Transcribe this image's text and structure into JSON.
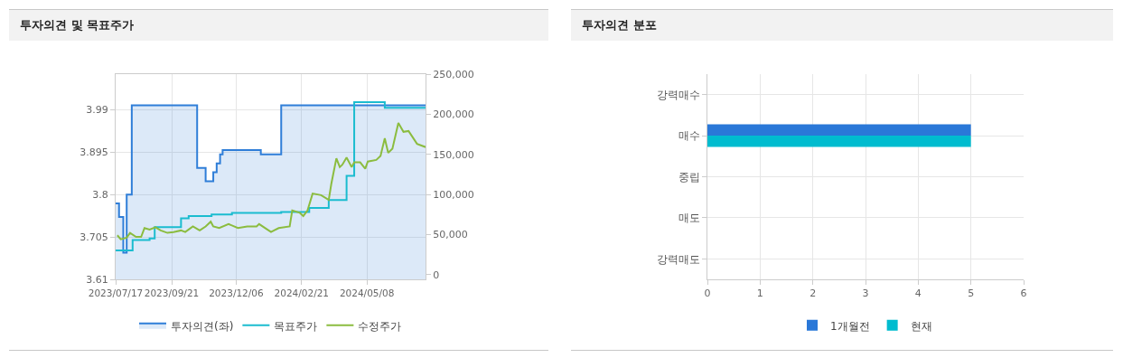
{
  "chart_data": [
    {
      "type": "line",
      "title": "투자의견 및 목표주가",
      "legend": "bottom",
      "grid": true,
      "xlim": [
        "2023-07-17",
        "2024-07-16"
      ],
      "xticks": [
        {
          "value": "2023-07-17",
          "label": "2023/07/17"
        },
        {
          "value": "2023-09-21",
          "label": "2023/09/21"
        },
        {
          "value": "2023-12-06",
          "label": "2023/12/06"
        },
        {
          "value": "2024-02-21",
          "label": "2024/02/21"
        },
        {
          "value": "2024-05-08",
          "label": "2024/05/08"
        }
      ],
      "ylim": [
        3.61,
        4.07
      ],
      "yticks": [
        3.61,
        3.705,
        3.8,
        3.895,
        3.99
      ],
      "y2lim": [
        -6000,
        250000
      ],
      "y2ticks": [
        0,
        {
          "value": 50000,
          "label": "50,000"
        },
        {
          "value": 100000,
          "label": "100,000"
        },
        {
          "value": 150000,
          "label": "150,000"
        },
        {
          "value": 200000,
          "label": "200,000"
        },
        {
          "value": 250000,
          "label": "250,000"
        }
      ],
      "series": [
        {
          "name": "투자의견(좌)",
          "type": "area",
          "color": "#2f7ed8",
          "x": [
            "2023-07-17",
            "2023-07-21",
            "2023-07-21",
            "2023-07-26",
            "2023-07-26",
            "2023-07-30",
            "2023-07-30",
            "2023-08-05",
            "2023-08-05",
            "2023-10-21",
            "2023-10-21",
            "2023-10-31",
            "2023-10-31",
            "2023-11-09",
            "2023-11-09",
            "2023-11-13",
            "2023-11-13",
            "2023-11-17",
            "2023-11-17",
            "2023-11-20",
            "2023-11-20",
            "2024-01-04",
            "2024-01-04",
            "2024-01-28",
            "2024-01-28",
            "2024-07-16"
          ],
          "values": [
            3.78,
            3.78,
            3.75,
            3.75,
            3.67,
            3.67,
            3.8,
            3.8,
            4.0,
            4.0,
            3.86,
            3.86,
            3.83,
            3.83,
            3.85,
            3.85,
            3.87,
            3.87,
            3.89,
            3.89,
            3.9,
            3.9,
            3.89,
            3.89,
            4.0,
            4.0
          ]
        },
        {
          "name": "목표주가",
          "type": "step",
          "axis": "y2",
          "color": "#1bbccf",
          "x": [
            "2023-07-17",
            "2023-08-06",
            "2023-08-26",
            "2023-09-01",
            "2023-10-02",
            "2023-10-11",
            "2023-11-07",
            "2023-12-01",
            "2024-01-28",
            "2024-03-01",
            "2024-03-24",
            "2024-04-14",
            "2024-04-23",
            "2024-05-29",
            "2024-07-16"
          ],
          "values": [
            30000,
            43000,
            45000,
            59000,
            70000,
            73000,
            75000,
            77000,
            78000,
            83000,
            93000,
            123000,
            215000,
            208000,
            208000
          ]
        },
        {
          "name": "수정주가",
          "type": "line",
          "axis": "y2",
          "color": "#8bbc3f",
          "x": [
            "2023-07-19",
            "2023-07-23",
            "2023-07-30",
            "2023-08-03",
            "2023-08-10",
            "2023-08-16",
            "2023-08-20",
            "2023-08-26",
            "2023-09-02",
            "2023-09-08",
            "2023-09-16",
            "2023-09-23",
            "2023-10-02",
            "2023-10-07",
            "2023-10-16",
            "2023-10-24",
            "2023-10-31",
            "2023-11-06",
            "2023-11-09",
            "2023-11-16",
            "2023-11-27",
            "2023-12-08",
            "2023-12-19",
            "2023-12-30",
            "2024-01-02",
            "2024-01-16",
            "2024-01-25",
            "2024-02-07",
            "2024-02-10",
            "2024-02-19",
            "2024-02-23",
            "2024-02-28",
            "2024-03-05",
            "2024-03-15",
            "2024-03-24",
            "2024-03-27",
            "2024-04-02",
            "2024-04-06",
            "2024-04-09",
            "2024-04-14",
            "2024-04-20",
            "2024-04-23",
            "2024-04-30",
            "2024-05-06",
            "2024-05-09",
            "2024-05-19",
            "2024-05-24",
            "2024-05-29",
            "2024-06-02",
            "2024-06-07",
            "2024-06-14",
            "2024-06-20",
            "2024-06-26",
            "2024-07-06",
            "2024-07-16"
          ],
          "values": [
            49000,
            44000,
            46000,
            52000,
            47000,
            47000,
            58000,
            56000,
            59000,
            55000,
            52000,
            53000,
            55000,
            53000,
            60000,
            55000,
            60000,
            66000,
            60000,
            58000,
            63000,
            58000,
            60000,
            60000,
            63000,
            53000,
            58000,
            60000,
            80000,
            77000,
            73000,
            80000,
            101000,
            99000,
            93000,
            113000,
            145000,
            134000,
            137000,
            146000,
            134000,
            140000,
            140000,
            132000,
            141000,
            143000,
            148000,
            170000,
            152000,
            157000,
            189000,
            178000,
            179000,
            163000,
            159000
          ]
        }
      ]
    },
    {
      "type": "bar",
      "orientation": "horizontal",
      "title": "투자의견 분포",
      "legend": "bottom",
      "grid": true,
      "categories": [
        "강력매수",
        "매수",
        "중립",
        "매도",
        "강력매도"
      ],
      "xlim": [
        0,
        6
      ],
      "xticks": [
        0,
        1,
        2,
        3,
        4,
        5,
        6
      ],
      "series": [
        {
          "name": "1개월전",
          "color": "#2a78d8",
          "values": [
            0,
            5,
            0,
            0,
            0
          ]
        },
        {
          "name": "현재",
          "color": "#00bccf",
          "values": [
            0,
            5,
            0,
            0,
            0
          ]
        }
      ]
    }
  ]
}
